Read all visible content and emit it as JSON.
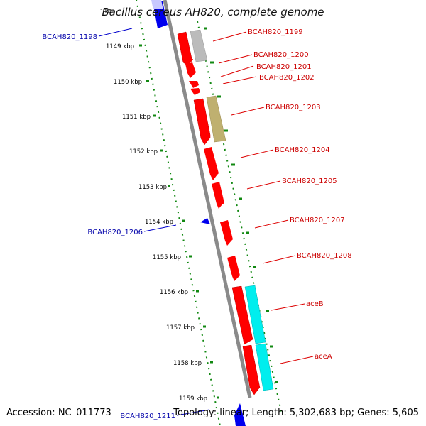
{
  "title": "Bacillus cereus AH820, complete genome",
  "accession": "Accession: NC_011773",
  "summary": "Topology: linear; Length: 5,302,683 bp; Genes: 5,605",
  "colors": {
    "forward_gene": "#ff0000",
    "reverse_gene": "#0000ee",
    "pseudo_gene": "#bbbbbb",
    "olive_feature": "#bfb070",
    "cyan_feature": "#00eeee",
    "tick_green": "#118811",
    "axis_gray": "#888888",
    "forward_label": "#cc0000",
    "reverse_label": "#0000aa"
  },
  "ruler": {
    "ticks": [
      "1149 kbp",
      "1150 kbp",
      "1151 kbp",
      "1152 kbp",
      "1153 kbp",
      "1154 kbp",
      "1155 kbp",
      "1156 kbp",
      "1157 kbp",
      "1158 kbp",
      "1159 kbp"
    ],
    "top_partial": "114"
  },
  "forward_labels": [
    "BCAH820_1199",
    "BCAH820_1200",
    "BCAH820_1201",
    "BCAH820_1202",
    "BCAH820_1203",
    "BCAH820_1204",
    "BCAH820_1205",
    "BCAH820_1207",
    "BCAH820_1208",
    "aceB",
    "aceA"
  ],
  "reverse_labels": [
    "BCAH820_1198",
    "BCAH820_1206",
    "BCAH820_1211"
  ]
}
